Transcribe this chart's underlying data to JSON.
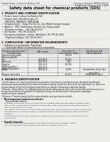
{
  "bg_color": "#f0ede8",
  "header_top_left": "Product Name: Lithium Ion Battery Cell",
  "header_top_right_l1": "Substance Number: BPNC48-00618",
  "header_top_right_l2": "Established / Revision: Dec.7.2016",
  "main_title": "Safety data sheet for chemical products (SDS)",
  "s1_title": "1. PRODUCT AND COMPANY IDENTIFICATION",
  "s1_lines": [
    "•  Product name: Lithium Ion Battery Cell",
    "•  Product code: Cylindrical-type cell",
    "     INR18650J, INR18650L, INR18650A",
    "•  Company name:   Sanyo Electric Co., Ltd., Mobile Energy Company",
    "•  Address:   2001  Kamitoshiro, Sumoto-City, Hyogo, Japan",
    "•  Telephone number:   +81-799-26-4111",
    "•  Fax number:  +81-799-26-4120",
    "•  Emergency telephone number (Weekday) +81-799-26-3962",
    "     (Night and holiday) +81-799-26-4101"
  ],
  "s2_title": "2. COMPOSITION / INFORMATION ON INGREDIENTS",
  "s2_line1": "•  Substance or preparation: Preparation",
  "s2_line2": "  •  Information about the chemical nature of product:",
  "tbl_h1": "Common chemical name /",
  "tbl_h1b": "Scientific name",
  "tbl_h2": "CAS number",
  "tbl_h3a": "Concentration /",
  "tbl_h3b": "Concentration range",
  "tbl_h4a": "Classification and",
  "tbl_h4b": "hazard labeling",
  "tbl_rows": [
    [
      "Lithium cobalt oxide",
      "-",
      "30-60%",
      "-"
    ],
    [
      "(LiMnxCoyNizO2)",
      "",
      "",
      ""
    ],
    [
      "Iron",
      "7439-89-6",
      "15-25%",
      "-"
    ],
    [
      "Aluminum",
      "7429-90-5",
      "2-8%",
      "-"
    ],
    [
      "Graphite",
      "",
      "",
      ""
    ],
    [
      "(Flake graphite /",
      "7782-42-5",
      "10-25%",
      "-"
    ],
    [
      "Artificial graphite)",
      "7782-42-5",
      "",
      ""
    ],
    [
      "Copper",
      "7440-50-8",
      "5-15%",
      "Sensitization of the skin"
    ],
    [
      "",
      "",
      "",
      "group No.2"
    ],
    [
      "Organic electrolyte",
      "-",
      "10-20%",
      "Inflammable liquid"
    ]
  ],
  "s3_title": "3. HAZARDS IDENTIFICATION",
  "s3_p1": "  For the battery cell, chemical materials are stored in a hermetically sealed metal case, designed to withstand",
  "s3_p2": "temperatures generated by electro-chemical reactions during normal use. As a result, during normal use, there is no",
  "s3_p3": "physical danger of ignition or explosion and there is no danger of hazardous materials leakage.",
  "s3_p4": "  However, if exposed to a fire, added mechanical shocks, decomposed, when electro-chemical reactions may occur,",
  "s3_p5": "the gas beside cannot be operated. The battery cell case will be breached or fire-portions, hazardous",
  "s3_p6": "materials may be released.",
  "s3_p7": "  Moreover, if heated strongly by the surrounding fire, soot gas may be emitted.",
  "s3_b1": "•  Most important hazard and effects:",
  "s3_human": "    Human health effects:",
  "s3_h1": "      Inhalation: The release of the electrolyte has an anesthetic action and stimulates a respiratory tract.",
  "s3_h2": "      Skin contact: The release of the electrolyte stimulates a skin. The electrolyte skin contact causes a",
  "s3_h3": "      sore and stimulation on the skin.",
  "s3_h4": "      Eye contact: The release of the electrolyte stimulates eyes. The electrolyte eye contact causes a sore",
  "s3_h5": "      and stimulation on the eye. Especially, a substance that causes a strong inflammation of the eye is",
  "s3_h6": "      contained.",
  "s3_h7": "      Environmental effects: Since a battery cell remains in the environment, do not throw out it into the",
  "s3_h8": "      environment.",
  "s3_sp": "•  Specific hazards:",
  "s3_s1": "      If the electrolyte contacts with water, it will generate detrimental hydrogen fluoride.",
  "s3_s2": "      Since the used electrolyte is inflammable liquid, do not bring close to fire."
}
